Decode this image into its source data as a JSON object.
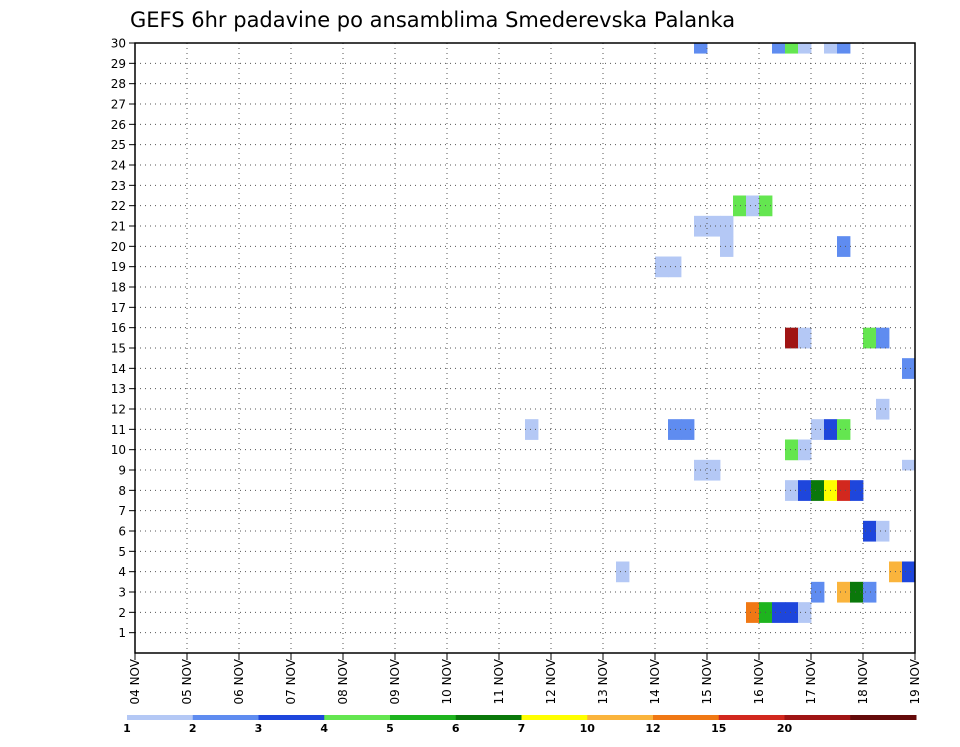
{
  "chart_data": {
    "type": "heatmap",
    "title": "GEFS 6hr padavine po ansamblima Smederevska Palanka",
    "xlabel": "",
    "ylabel": "",
    "x_tick_labels": [
      "04 NOV",
      "05 NOV",
      "06 NOV",
      "07 NOV",
      "08 NOV",
      "09 NOV",
      "10 NOV",
      "11 NOV",
      "12 NOV",
      "13 NOV",
      "14 NOV",
      "15 NOV",
      "16 NOV",
      "17 NOV",
      "18 NOV",
      "19 NOV"
    ],
    "x_range_days": [
      0,
      15
    ],
    "y_tick_labels": [
      "1",
      "2",
      "3",
      "4",
      "5",
      "6",
      "7",
      "8",
      "9",
      "10",
      "11",
      "12",
      "13",
      "14",
      "15",
      "16",
      "17",
      "18",
      "19",
      "20",
      "21",
      "22",
      "23",
      "24",
      "25",
      "26",
      "27",
      "28",
      "29",
      "30"
    ],
    "y_range": [
      0,
      30
    ],
    "grid": true,
    "colorbar": {
      "labels": [
        "1",
        "2",
        "3",
        "4",
        "5",
        "6",
        "7",
        "10",
        "12",
        "15",
        "20"
      ],
      "colors": [
        "#b4c8f5",
        "#5f8cf0",
        "#1e46dc",
        "#64e650",
        "#1eb41e",
        "#0a780a",
        "#ffff00",
        "#fab43c",
        "#f07814",
        "#d2281e",
        "#a01414",
        "#640a0a"
      ]
    },
    "cells": [
      {
        "day": 10.0,
        "member": 18.5,
        "level": 0
      },
      {
        "day": 10.25,
        "member": 18.5,
        "level": 0
      },
      {
        "day": 10.0,
        "member": 19.0,
        "level": 0
      },
      {
        "day": 10.25,
        "member": 19.0,
        "level": 0
      },
      {
        "day": 10.75,
        "member": 20.5,
        "level": 0
      },
      {
        "day": 11.0,
        "member": 20.5,
        "level": 0
      },
      {
        "day": 11.25,
        "member": 20.5,
        "level": 0
      },
      {
        "day": 10.75,
        "member": 21.0,
        "level": 0
      },
      {
        "day": 11.0,
        "member": 21.0,
        "level": 0
      },
      {
        "day": 11.25,
        "member": 21.0,
        "level": 0
      },
      {
        "day": 11.25,
        "member": 20.0,
        "level": 0
      },
      {
        "day": 11.25,
        "member": 19.5,
        "level": 0
      },
      {
        "day": 11.5,
        "member": 22.0,
        "level": 3
      },
      {
        "day": 11.75,
        "member": 22.0,
        "level": 0
      },
      {
        "day": 12.0,
        "member": 22.0,
        "level": 3
      },
      {
        "day": 11.5,
        "member": 21.5,
        "level": 3
      },
      {
        "day": 11.75,
        "member": 21.5,
        "level": 0
      },
      {
        "day": 12.0,
        "member": 21.5,
        "level": 3
      },
      {
        "day": 13.5,
        "member": 20.0,
        "level": 1
      },
      {
        "day": 13.5,
        "member": 19.5,
        "level": 1
      },
      {
        "day": 10.75,
        "member": 29.5,
        "level": 1
      },
      {
        "day": 12.25,
        "member": 29.5,
        "level": 1
      },
      {
        "day": 12.5,
        "member": 29.5,
        "level": 3
      },
      {
        "day": 12.75,
        "member": 29.5,
        "level": 0
      },
      {
        "day": 13.25,
        "member": 29.5,
        "level": 0
      },
      {
        "day": 13.5,
        "member": 29.5,
        "level": 1
      },
      {
        "day": 12.5,
        "member": 15.5,
        "level": 10
      },
      {
        "day": 12.5,
        "member": 15.0,
        "level": 10
      },
      {
        "day": 12.75,
        "member": 15.5,
        "level": 0
      },
      {
        "day": 12.75,
        "member": 15.0,
        "level": 0
      },
      {
        "day": 14.0,
        "member": 15.5,
        "level": 3
      },
      {
        "day": 14.25,
        "member": 15.5,
        "level": 1
      },
      {
        "day": 14.0,
        "member": 15.0,
        "level": 3
      },
      {
        "day": 14.25,
        "member": 15.0,
        "level": 1
      },
      {
        "day": 14.75,
        "member": 14.0,
        "level": 1
      },
      {
        "day": 14.75,
        "member": 13.5,
        "level": 1
      },
      {
        "day": 14.25,
        "member": 12.0,
        "level": 0
      },
      {
        "day": 14.25,
        "member": 11.5,
        "level": 0
      },
      {
        "day": 7.5,
        "member": 11.0,
        "level": 0
      },
      {
        "day": 7.5,
        "member": 10.5,
        "level": 0
      },
      {
        "day": 10.25,
        "member": 11.0,
        "level": 1
      },
      {
        "day": 10.5,
        "member": 11.0,
        "level": 1
      },
      {
        "day": 10.25,
        "member": 10.5,
        "level": 1
      },
      {
        "day": 10.5,
        "member": 10.5,
        "level": 1
      },
      {
        "day": 13.0,
        "member": 11.0,
        "level": 0
      },
      {
        "day": 13.25,
        "member": 11.0,
        "level": 2
      },
      {
        "day": 13.5,
        "member": 11.0,
        "level": 3
      },
      {
        "day": 13.0,
        "member": 10.5,
        "level": 0
      },
      {
        "day": 13.25,
        "member": 10.5,
        "level": 2
      },
      {
        "day": 13.5,
        "member": 10.5,
        "level": 3
      },
      {
        "day": 12.5,
        "member": 10.0,
        "level": 3
      },
      {
        "day": 12.75,
        "member": 10.0,
        "level": 0
      },
      {
        "day": 12.5,
        "member": 9.5,
        "level": 3
      },
      {
        "day": 12.75,
        "member": 9.5,
        "level": 0
      },
      {
        "day": 10.75,
        "member": 9.0,
        "level": 0
      },
      {
        "day": 11.0,
        "member": 9.0,
        "level": 0
      },
      {
        "day": 10.75,
        "member": 8.5,
        "level": 0
      },
      {
        "day": 11.0,
        "member": 8.5,
        "level": 0
      },
      {
        "day": 14.75,
        "member": 9.0,
        "level": 0
      },
      {
        "day": 12.5,
        "member": 8.0,
        "level": 0
      },
      {
        "day": 12.75,
        "member": 8.0,
        "level": 2
      },
      {
        "day": 13.0,
        "member": 8.0,
        "level": 5
      },
      {
        "day": 13.25,
        "member": 8.0,
        "level": 6
      },
      {
        "day": 13.5,
        "member": 8.0,
        "level": 9
      },
      {
        "day": 13.75,
        "member": 8.0,
        "level": 2
      },
      {
        "day": 12.5,
        "member": 7.5,
        "level": 0
      },
      {
        "day": 12.75,
        "member": 7.5,
        "level": 2
      },
      {
        "day": 13.0,
        "member": 7.5,
        "level": 5
      },
      {
        "day": 13.25,
        "member": 7.5,
        "level": 6
      },
      {
        "day": 13.5,
        "member": 7.5,
        "level": 9
      },
      {
        "day": 13.75,
        "member": 7.5,
        "level": 2
      },
      {
        "day": 14.0,
        "member": 6.0,
        "level": 2
      },
      {
        "day": 14.25,
        "member": 6.0,
        "level": 0
      },
      {
        "day": 14.0,
        "member": 5.5,
        "level": 2
      },
      {
        "day": 14.25,
        "member": 5.5,
        "level": 0
      },
      {
        "day": 9.25,
        "member": 4.0,
        "level": 0
      },
      {
        "day": 9.25,
        "member": 3.5,
        "level": 0
      },
      {
        "day": 14.5,
        "member": 4.0,
        "level": 7
      },
      {
        "day": 14.75,
        "member": 4.0,
        "level": 2
      },
      {
        "day": 14.5,
        "member": 3.5,
        "level": 7
      },
      {
        "day": 14.75,
        "member": 3.5,
        "level": 2
      },
      {
        "day": 13.0,
        "member": 3.0,
        "level": 1
      },
      {
        "day": 13.0,
        "member": 2.5,
        "level": 1
      },
      {
        "day": 13.5,
        "member": 3.0,
        "level": 7
      },
      {
        "day": 13.75,
        "member": 3.0,
        "level": 5
      },
      {
        "day": 14.0,
        "member": 3.0,
        "level": 1
      },
      {
        "day": 13.5,
        "member": 2.5,
        "level": 7
      },
      {
        "day": 13.75,
        "member": 2.5,
        "level": 5
      },
      {
        "day": 14.0,
        "member": 2.5,
        "level": 1
      },
      {
        "day": 11.75,
        "member": 2.0,
        "level": 8
      },
      {
        "day": 12.0,
        "member": 2.0,
        "level": 4
      },
      {
        "day": 12.25,
        "member": 2.0,
        "level": 2
      },
      {
        "day": 12.5,
        "member": 2.0,
        "level": 2
      },
      {
        "day": 12.75,
        "member": 2.0,
        "level": 0
      },
      {
        "day": 11.75,
        "member": 1.5,
        "level": 8
      },
      {
        "day": 12.0,
        "member": 1.5,
        "level": 4
      },
      {
        "day": 12.25,
        "member": 1.5,
        "level": 2
      },
      {
        "day": 12.5,
        "member": 1.5,
        "level": 2
      },
      {
        "day": 12.75,
        "member": 1.5,
        "level": 0
      }
    ]
  }
}
